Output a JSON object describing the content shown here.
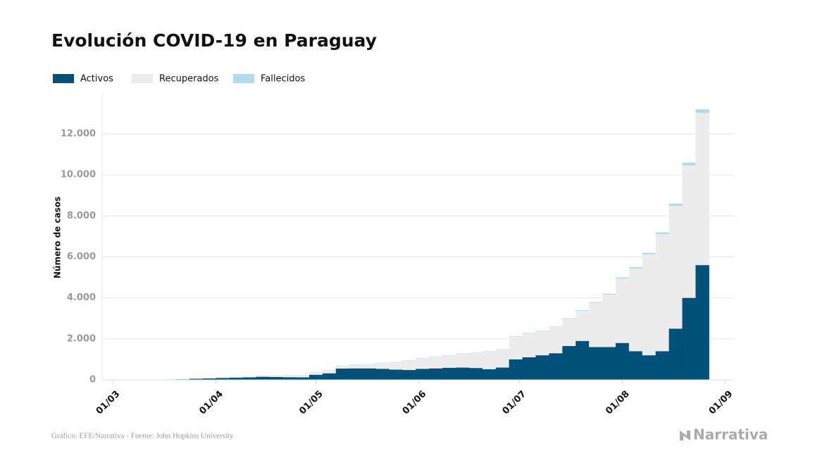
{
  "chart_data": {
    "type": "stacked-step",
    "title": "Evolución COVID-19 en Paraguay",
    "y_label": "Número de casos",
    "source": "Gráfico: EFE/Narrativa - Fuente: John Hopkins University",
    "brand": "Narrativa",
    "x": [
      "16/03",
      "20/03",
      "24/03",
      "28/03",
      "01/04",
      "05/04",
      "09/04",
      "13/04",
      "17/04",
      "21/04",
      "25/04",
      "29/04",
      "03/05",
      "07/05",
      "11/05",
      "15/05",
      "19/05",
      "23/05",
      "27/05",
      "31/05",
      "04/06",
      "08/06",
      "12/06",
      "16/06",
      "20/06",
      "24/06",
      "28/06",
      "02/07",
      "06/07",
      "10/07",
      "14/07",
      "18/07",
      "22/07",
      "26/07",
      "30/07",
      "03/08",
      "07/08",
      "11/08",
      "15/08",
      "19/08",
      "23/08"
    ],
    "series": [
      {
        "name": "Activos",
        "color": "#00527a",
        "values": [
          18,
          27,
          55,
          72,
          95,
          110,
          120,
          150,
          140,
          130,
          120,
          250,
          320,
          550,
          560,
          560,
          540,
          500,
          480,
          540,
          560,
          590,
          600,
          580,
          520,
          600,
          1000,
          1100,
          1200,
          1300,
          1650,
          1900,
          1600,
          1600,
          1800,
          1400,
          1200,
          1400,
          2500,
          4000,
          5600
        ]
      },
      {
        "name": "Recuperados",
        "color": "#ececec",
        "values": [
          1,
          1,
          2,
          5,
          10,
          14,
          32,
          42,
          61,
          91,
          110,
          140,
          150,
          139,
          179,
          199,
          289,
          369,
          469,
          519,
          558,
          598,
          687,
          737,
          867,
          887,
          1115,
          1183,
          1181,
          1280,
          1325,
          1470,
          2165,
          2558,
          3145,
          4035,
          4925,
          5710,
          5990,
          6460,
          7425
        ]
      },
      {
        "name": "Fallecidos",
        "color": "#aedcec",
        "values": [
          1,
          2,
          3,
          3,
          5,
          6,
          8,
          8,
          9,
          9,
          10,
          10,
          10,
          11,
          11,
          11,
          11,
          11,
          11,
          11,
          12,
          12,
          13,
          13,
          13,
          13,
          15,
          17,
          19,
          20,
          25,
          30,
          35,
          42,
          55,
          65,
          75,
          90,
          110,
          140,
          175
        ]
      }
    ],
    "xlim": [
      "01/03",
      "01/09"
    ],
    "xticks": [
      "01/03",
      "01/04",
      "01/05",
      "01/06",
      "01/07",
      "01/08",
      "01/09"
    ],
    "ylim": [
      0,
      13500
    ],
    "yticks": [
      0,
      {
        "value": 2000,
        "label": "2.000"
      },
      {
        "value": 4000,
        "label": "4.000"
      },
      {
        "value": 6000,
        "label": "6.000"
      },
      {
        "value": 8000,
        "label": "8.000"
      },
      {
        "value": 10000,
        "label": "10.000"
      },
      {
        "value": 12000,
        "label": "12.000"
      }
    ],
    "grid": true
  }
}
